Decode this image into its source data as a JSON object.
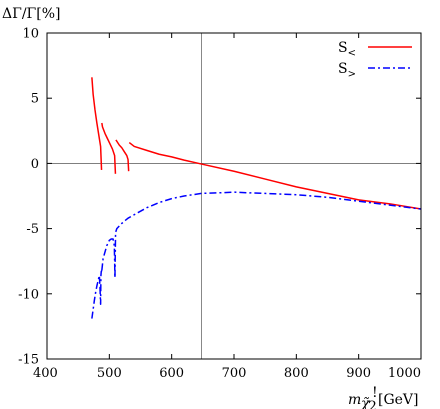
{
  "chart_data": {
    "type": "line",
    "ylabel": "ΔΓ/Γ[%]",
    "xlabel_main": "m",
    "xlabel_sub": "χ̃",
    "xlabel_subsub": "2",
    "xlabel_sup": "!",
    "xlabel_unit": "[GeV]",
    "xlim": [
      400,
      1000
    ],
    "ylim": [
      -15,
      10
    ],
    "x_ticks": [
      "400",
      "500",
      "600",
      "700",
      "800",
      "900",
      "1000"
    ],
    "y_ticks": [
      "10",
      "5",
      "0",
      "-5",
      "-10",
      "-15"
    ],
    "reference_vline_x": 648,
    "reference_hline_y": 0,
    "legend_position": "top-right",
    "series": [
      {
        "name": "S<",
        "name_base": "S",
        "name_sub": "<",
        "color": "#ff0000",
        "style": "solid",
        "segments": [
          {
            "x": [
              472,
              474,
              477,
              480,
              483,
              486,
              487.5
            ],
            "y": [
              6.6,
              5.3,
              4.1,
              3.1,
              2.2,
              1.3,
              -0.5
            ]
          },
          {
            "x": [
              488,
              489,
              493,
              497,
              501,
              505,
              508.5,
              509.8
            ],
            "y": [
              3.1,
              2.8,
              2.3,
              1.9,
              1.5,
              1.1,
              0.6,
              -0.8
            ]
          },
          {
            "x": [
              510.5,
              512,
              516,
              520,
              524,
              528,
              530,
              531
            ],
            "y": [
              1.8,
              1.7,
              1.4,
              1.2,
              0.9,
              0.6,
              0.3,
              -0.6
            ]
          },
          {
            "x": [
              532,
              540,
              560,
              580,
              600,
              620,
              648,
              700,
              750,
              800,
              850,
              900,
              950,
              1000
            ],
            "y": [
              1.6,
              1.3,
              1.0,
              0.7,
              0.5,
              0.25,
              -0.05,
              -0.6,
              -1.2,
              -1.8,
              -2.3,
              -2.8,
              -3.1,
              -3.5
            ]
          }
        ]
      },
      {
        "name": "S>",
        "name_base": "S",
        "name_sub": ">",
        "color": "#0000ff",
        "style": "dash-dot",
        "segments": [
          {
            "x": [
              472,
              474,
              476,
              478,
              480,
              482,
              484,
              485
            ],
            "y": [
              -11.9,
              -11.2,
              -10.5,
              -9.9,
              -9.4,
              -9.0,
              -8.6,
              -9.5
            ]
          },
          {
            "x": [
              485,
              486,
              486.5,
              487,
              488
            ],
            "y": [
              -9.5,
              -10.8,
              -8.6,
              -8.3,
              -8.2
            ]
          },
          {
            "x": [
              488,
              490,
              493,
              496,
              500,
              503,
              506,
              508,
              509
            ],
            "y": [
              -8.2,
              -7.3,
              -6.8,
              -6.3,
              -5.9,
              -5.8,
              -5.8,
              -6.3,
              -8.7
            ]
          },
          {
            "x": [
              509,
              510,
              512,
              520,
              530,
              545,
              560,
              580,
              600,
              620,
              648,
              680,
              700,
              720,
              750,
              800,
              850,
              900,
              950,
              1000
            ],
            "y": [
              -8.7,
              -5.3,
              -5.0,
              -4.6,
              -4.2,
              -3.8,
              -3.4,
              -3.0,
              -2.7,
              -2.5,
              -2.3,
              -2.25,
              -2.2,
              -2.25,
              -2.3,
              -2.4,
              -2.6,
              -2.9,
              -3.2,
              -3.5
            ]
          }
        ]
      }
    ]
  }
}
